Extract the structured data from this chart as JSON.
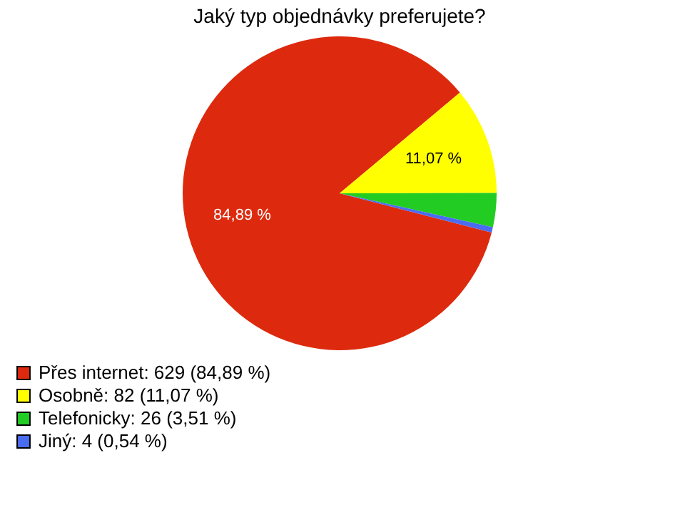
{
  "chart_data": {
    "type": "pie",
    "title": "Jaký typ objednávky preferujete?",
    "categories": [
      "Přes internet: 629 (84,89 %)",
      "Osobně: 82 (11,07 %)",
      "Telefonicky: 26 (3,51 %)",
      "Jiný: 4 (0,54 %)"
    ],
    "values": [
      84.89,
      11.07,
      3.51,
      0.54
    ],
    "colors": [
      "#dd2a0e",
      "#ffff00",
      "#22cc22",
      "#4a6cf0"
    ],
    "value_labels": [
      "84,89 %",
      "11,07 %",
      null,
      null
    ],
    "legend": "bottom left"
  }
}
